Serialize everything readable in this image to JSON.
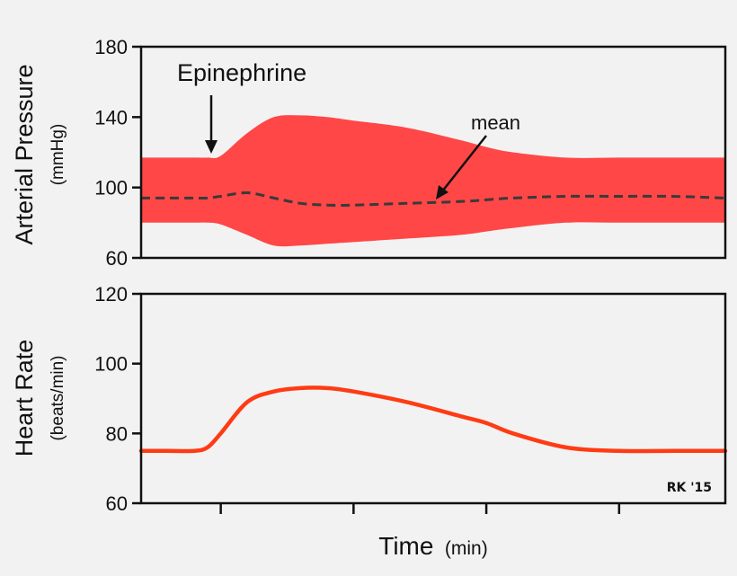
{
  "colors": {
    "pressure_band": "#ff4747",
    "mean_line": "#3a3a3a",
    "heart_rate_line": "#ff3b14",
    "axis": "#111111",
    "background": "#f2f2f2"
  },
  "xlabel": {
    "main": "Time",
    "unit": "(min)"
  },
  "credit": "RK '15",
  "chart_data": [
    {
      "type": "area",
      "ylabel": {
        "main": "Arterial Pressure",
        "unit": "(mmHg)"
      },
      "ylim": [
        60,
        180
      ],
      "yticks": [
        60,
        100,
        140,
        180
      ],
      "ytick_labels": [
        "60",
        "100",
        "140",
        "180"
      ],
      "x": [
        0,
        1,
        2,
        2.5,
        3,
        4,
        5,
        6,
        7,
        8,
        10,
        12,
        13,
        14,
        16,
        18,
        20,
        22
      ],
      "series": [
        {
          "values_upper": [
            117,
            117,
            117,
            117,
            118,
            131,
            140,
            141,
            140,
            138,
            134,
            127,
            123,
            120,
            117,
            117,
            117,
            117
          ],
          "values_lower": [
            80,
            80,
            80,
            80,
            79,
            73,
            67,
            67,
            68,
            69,
            71,
            73,
            75,
            77,
            80,
            80,
            80,
            80
          ]
        },
        {
          "values": [
            94,
            94,
            94,
            94,
            95,
            97,
            94,
            91,
            90,
            90,
            91,
            92,
            93,
            94,
            95,
            95,
            95,
            94
          ]
        }
      ],
      "annotations": [
        {
          "text": "Epinephrine",
          "x": 2.6,
          "y": 117
        },
        {
          "text": "mean",
          "x": 11.2,
          "y": 91
        }
      ],
      "grid": false
    },
    {
      "type": "line",
      "ylabel": {
        "main": "Heart Rate",
        "unit": "(beats/min)"
      },
      "ylim": [
        60,
        120
      ],
      "yticks": [
        60,
        80,
        100,
        120
      ],
      "ytick_labels": [
        "60",
        "80",
        "100",
        "120"
      ],
      "x": [
        0,
        1,
        2,
        2.5,
        3,
        4,
        5,
        6,
        7,
        8,
        10,
        12,
        13,
        14,
        16,
        18,
        20,
        22
      ],
      "series": [
        {
          "values": [
            75,
            75,
            75,
            76,
            80,
            89,
            92,
            93,
            93,
            92,
            89,
            85,
            83,
            80,
            76,
            75,
            75,
            75
          ]
        }
      ],
      "xticks": [
        3,
        8,
        13,
        18
      ],
      "grid": false
    }
  ]
}
